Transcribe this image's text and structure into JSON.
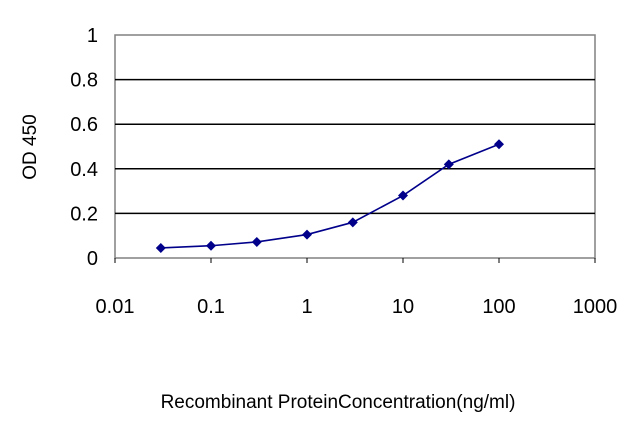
{
  "chart_data": {
    "type": "line",
    "xscale": "log",
    "xlabel": "Recombinant ProteinConcentration(ng/ml)",
    "ylabel": "OD 450",
    "xlim": [
      0.01,
      1000
    ],
    "ylim": [
      0,
      1
    ],
    "x_ticks": [
      "0.01",
      "0.1",
      "1",
      "10",
      "100",
      "1000"
    ],
    "y_ticks": [
      "0",
      "0.2",
      "0.4",
      "0.6",
      "0.8",
      "1"
    ],
    "grid": "horizontal",
    "plot_background": "#ffffff",
    "series_color": "#00008b",
    "series": [
      {
        "x": [
          0.03,
          0.1,
          0.3,
          1,
          3,
          10,
          30,
          100
        ],
        "y": [
          0.045,
          0.055,
          0.072,
          0.105,
          0.16,
          0.28,
          0.42,
          0.51
        ]
      }
    ]
  }
}
